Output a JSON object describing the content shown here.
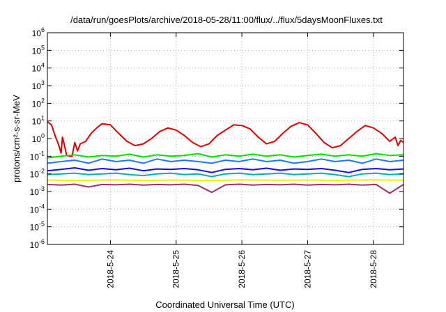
{
  "chart_data": {
    "type": "line",
    "title": "/data/run/goesPlots/archive/2018-05-28/11:00/flux/../flux/5daysMoonFluxes.txt",
    "xlabel": "Coordinated Universal Time (UTC)",
    "ylabel": "protons/cm²-s-sr-MeV",
    "y_scale": "log",
    "grid": true,
    "xlim": [
      "2018-05-23T01:00",
      "2018-05-28T11:00"
    ],
    "ylim": [
      1e-06,
      1000000.0
    ],
    "x_ticks": [
      "2018-5-24",
      "2018-5-25",
      "2018-5-26",
      "2018-5-27",
      "2018-5-28"
    ],
    "y_ticks": [
      {
        "base": "10",
        "exp": "-6"
      },
      {
        "base": "10",
        "exp": "-5"
      },
      {
        "base": "10",
        "exp": "-4"
      },
      {
        "base": "10",
        "exp": "-3"
      },
      {
        "base": "10",
        "exp": "-2"
      },
      {
        "base": "10",
        "exp": "-1"
      },
      {
        "base": "10",
        "exp": "0"
      },
      {
        "base": "10",
        "exp": "1"
      },
      {
        "base": "10",
        "exp": "2"
      },
      {
        "base": "10",
        "exp": "3"
      },
      {
        "base": "10",
        "exp": "4"
      },
      {
        "base": "10",
        "exp": "5"
      },
      {
        "base": "10",
        "exp": "6"
      }
    ],
    "series": [
      {
        "color": "#e00000",
        "x": [
          "2018-05-23T01:00",
          "2018-05-23T02:30",
          "2018-05-23T04:00",
          "2018-05-23T05:00",
          "2018-05-23T06:00",
          "2018-05-23T06:30",
          "2018-05-23T07:00",
          "2018-05-23T08:00",
          "2018-05-23T09:00",
          "2018-05-23T10:00",
          "2018-05-23T11:00",
          "2018-05-23T12:00",
          "2018-05-23T13:00",
          "2018-05-23T15:00",
          "2018-05-23T17:00",
          "2018-05-23T19:00",
          "2018-05-23T21:00",
          "2018-05-24T00:00",
          "2018-05-24T03:00",
          "2018-05-24T06:00",
          "2018-05-24T09:00",
          "2018-05-24T12:00",
          "2018-05-24T15:00",
          "2018-05-24T18:00",
          "2018-05-24T21:00",
          "2018-05-25T00:00",
          "2018-05-25T03:00",
          "2018-05-25T06:00",
          "2018-05-25T09:00",
          "2018-05-25T12:00",
          "2018-05-25T15:00",
          "2018-05-25T18:00",
          "2018-05-25T21:00",
          "2018-05-26T00:00",
          "2018-05-26T03:00",
          "2018-05-26T06:00",
          "2018-05-26T09:00",
          "2018-05-26T12:00",
          "2018-05-26T15:00",
          "2018-05-26T18:00",
          "2018-05-26T21:00",
          "2018-05-27T00:00",
          "2018-05-27T03:00",
          "2018-05-27T06:00",
          "2018-05-27T09:00",
          "2018-05-27T12:00",
          "2018-05-27T15:00",
          "2018-05-27T18:00",
          "2018-05-27T21:00",
          "2018-05-28T00:00",
          "2018-05-28T03:00",
          "2018-05-28T06:00",
          "2018-05-28T08:00",
          "2018-05-28T09:00",
          "2018-05-28T10:00",
          "2018-05-28T11:00"
        ],
        "y": [
          9,
          6,
          1.2,
          0.5,
          0.15,
          1.2,
          0.6,
          0.12,
          0.1,
          0.1,
          0.6,
          0.2,
          0.5,
          0.7,
          2,
          4,
          7,
          6,
          2,
          0.7,
          0.4,
          0.5,
          1,
          2.5,
          4,
          3,
          1.5,
          0.6,
          0.35,
          0.5,
          1.5,
          3,
          6,
          5.5,
          3.5,
          1.2,
          0.5,
          0.7,
          2,
          5,
          8,
          6,
          2,
          0.6,
          0.3,
          0.4,
          1,
          2.5,
          5.5,
          4,
          2,
          0.7,
          1.2,
          0.4,
          0.8,
          0.6
        ]
      },
      {
        "color": "#00e000",
        "x": [
          "2018-05-23T01:00",
          "2018-05-23T06:00",
          "2018-05-23T11:00",
          "2018-05-23T16:00",
          "2018-05-23T21:00",
          "2018-05-24T02:00",
          "2018-05-24T07:00",
          "2018-05-24T12:00",
          "2018-05-24T17:00",
          "2018-05-24T22:00",
          "2018-05-25T03:00",
          "2018-05-25T08:00",
          "2018-05-25T13:00",
          "2018-05-25T18:00",
          "2018-05-25T23:00",
          "2018-05-26T04:00",
          "2018-05-26T09:00",
          "2018-05-26T14:00",
          "2018-05-26T19:00",
          "2018-05-27T00:00",
          "2018-05-27T05:00",
          "2018-05-27T10:00",
          "2018-05-27T15:00",
          "2018-05-27T20:00",
          "2018-05-28T01:00",
          "2018-05-28T06:00",
          "2018-05-28T11:00"
        ],
        "y": [
          0.08,
          0.1,
          0.12,
          0.09,
          0.11,
          0.1,
          0.13,
          0.09,
          0.12,
          0.1,
          0.11,
          0.14,
          0.09,
          0.12,
          0.1,
          0.13,
          0.1,
          0.12,
          0.09,
          0.11,
          0.13,
          0.1,
          0.12,
          0.1,
          0.14,
          0.11,
          0.12
        ]
      },
      {
        "color": "#1e78ff",
        "x": [
          "2018-05-23T01:00",
          "2018-05-23T06:00",
          "2018-05-23T11:00",
          "2018-05-23T16:00",
          "2018-05-23T21:00",
          "2018-05-24T02:00",
          "2018-05-24T07:00",
          "2018-05-24T12:00",
          "2018-05-24T17:00",
          "2018-05-24T22:00",
          "2018-05-25T03:00",
          "2018-05-25T08:00",
          "2018-05-25T13:00",
          "2018-05-25T18:00",
          "2018-05-25T23:00",
          "2018-05-26T04:00",
          "2018-05-26T09:00",
          "2018-05-26T14:00",
          "2018-05-26T19:00",
          "2018-05-27T00:00",
          "2018-05-27T05:00",
          "2018-05-27T10:00",
          "2018-05-27T15:00",
          "2018-05-27T20:00",
          "2018-05-28T01:00",
          "2018-05-28T06:00",
          "2018-05-28T11:00"
        ],
        "y": [
          0.04,
          0.05,
          0.06,
          0.04,
          0.07,
          0.05,
          0.06,
          0.04,
          0.07,
          0.05,
          0.06,
          0.05,
          0.04,
          0.06,
          0.05,
          0.07,
          0.05,
          0.06,
          0.04,
          0.05,
          0.07,
          0.05,
          0.06,
          0.04,
          0.07,
          0.05,
          0.06
        ]
      },
      {
        "color": "#1010e0",
        "x": [
          "2018-05-23T01:00",
          "2018-05-23T06:00",
          "2018-05-23T11:00",
          "2018-05-23T16:00",
          "2018-05-23T21:00",
          "2018-05-24T02:00",
          "2018-05-24T07:00",
          "2018-05-24T12:00",
          "2018-05-24T17:00",
          "2018-05-24T22:00",
          "2018-05-25T03:00",
          "2018-05-25T08:00",
          "2018-05-25T13:00",
          "2018-05-25T18:00",
          "2018-05-25T23:00",
          "2018-05-26T04:00",
          "2018-05-26T09:00",
          "2018-05-26T14:00",
          "2018-05-26T19:00",
          "2018-05-27T00:00",
          "2018-05-27T05:00",
          "2018-05-27T10:00",
          "2018-05-27T15:00",
          "2018-05-27T20:00",
          "2018-05-28T01:00",
          "2018-05-28T06:00",
          "2018-05-28T11:00"
        ],
        "y": [
          0.015,
          0.018,
          0.022,
          0.016,
          0.02,
          0.017,
          0.021,
          0.015,
          0.019,
          0.018,
          0.02,
          0.017,
          0.012,
          0.018,
          0.02,
          0.017,
          0.021,
          0.016,
          0.019,
          0.018,
          0.02,
          0.016,
          0.012,
          0.018,
          0.02,
          0.017,
          0.019
        ]
      },
      {
        "color": "#00b0b0",
        "x": [
          "2018-05-23T01:00",
          "2018-05-23T06:00",
          "2018-05-23T11:00",
          "2018-05-23T16:00",
          "2018-05-23T21:00",
          "2018-05-24T02:00",
          "2018-05-24T07:00",
          "2018-05-24T12:00",
          "2018-05-24T17:00",
          "2018-05-24T22:00",
          "2018-05-25T03:00",
          "2018-05-25T08:00",
          "2018-05-25T13:00",
          "2018-05-25T18:00",
          "2018-05-25T23:00",
          "2018-05-26T04:00",
          "2018-05-26T09:00",
          "2018-05-26T14:00",
          "2018-05-26T19:00",
          "2018-05-27T00:00",
          "2018-05-27T05:00",
          "2018-05-27T10:00",
          "2018-05-27T15:00",
          "2018-05-27T20:00",
          "2018-05-28T01:00",
          "2018-05-28T06:00",
          "2018-05-28T11:00"
        ],
        "y": [
          0.009,
          0.01,
          0.011,
          0.009,
          0.01,
          0.011,
          0.009,
          0.008,
          0.01,
          0.011,
          0.009,
          0.01,
          0.007,
          0.01,
          0.011,
          0.009,
          0.01,
          0.011,
          0.009,
          0.01,
          0.011,
          0.009,
          0.007,
          0.01,
          0.011,
          0.009,
          0.01
        ]
      },
      {
        "color": "#f0f000",
        "x": [
          "2018-05-23T01:00",
          "2018-05-23T12:00",
          "2018-05-24T00:00",
          "2018-05-24T12:00",
          "2018-05-25T00:00",
          "2018-05-25T12:00",
          "2018-05-26T00:00",
          "2018-05-26T12:00",
          "2018-05-27T00:00",
          "2018-05-27T12:00",
          "2018-05-28T00:00",
          "2018-05-28T11:00"
        ],
        "y": [
          0.0045,
          0.0042,
          0.0046,
          0.0043,
          0.0045,
          0.0042,
          0.0046,
          0.0044,
          0.0045,
          0.0043,
          0.0046,
          0.0044
        ]
      },
      {
        "color": "#a0306e",
        "x": [
          "2018-05-23T01:00",
          "2018-05-23T06:00",
          "2018-05-23T11:00",
          "2018-05-23T16:00",
          "2018-05-23T21:00",
          "2018-05-24T02:00",
          "2018-05-24T07:00",
          "2018-05-24T12:00",
          "2018-05-24T17:00",
          "2018-05-24T22:00",
          "2018-05-25T03:00",
          "2018-05-25T08:00",
          "2018-05-25T13:00",
          "2018-05-25T18:00",
          "2018-05-25T23:00",
          "2018-05-26T04:00",
          "2018-05-26T09:00",
          "2018-05-26T14:00",
          "2018-05-26T19:00",
          "2018-05-27T00:00",
          "2018-05-27T05:00",
          "2018-05-27T10:00",
          "2018-05-27T15:00",
          "2018-05-27T20:00",
          "2018-05-28T01:00",
          "2018-05-28T06:00",
          "2018-05-28T11:00"
        ],
        "y": [
          0.0025,
          0.0023,
          0.0026,
          0.0018,
          0.0025,
          0.0024,
          0.0026,
          0.0023,
          0.0025,
          0.0024,
          0.0026,
          0.0022,
          0.0009,
          0.0024,
          0.0026,
          0.0023,
          0.0025,
          0.0024,
          0.0026,
          0.0023,
          0.0025,
          0.0024,
          0.0026,
          0.0023,
          0.0025,
          0.0008,
          0.0025
        ]
      }
    ]
  }
}
